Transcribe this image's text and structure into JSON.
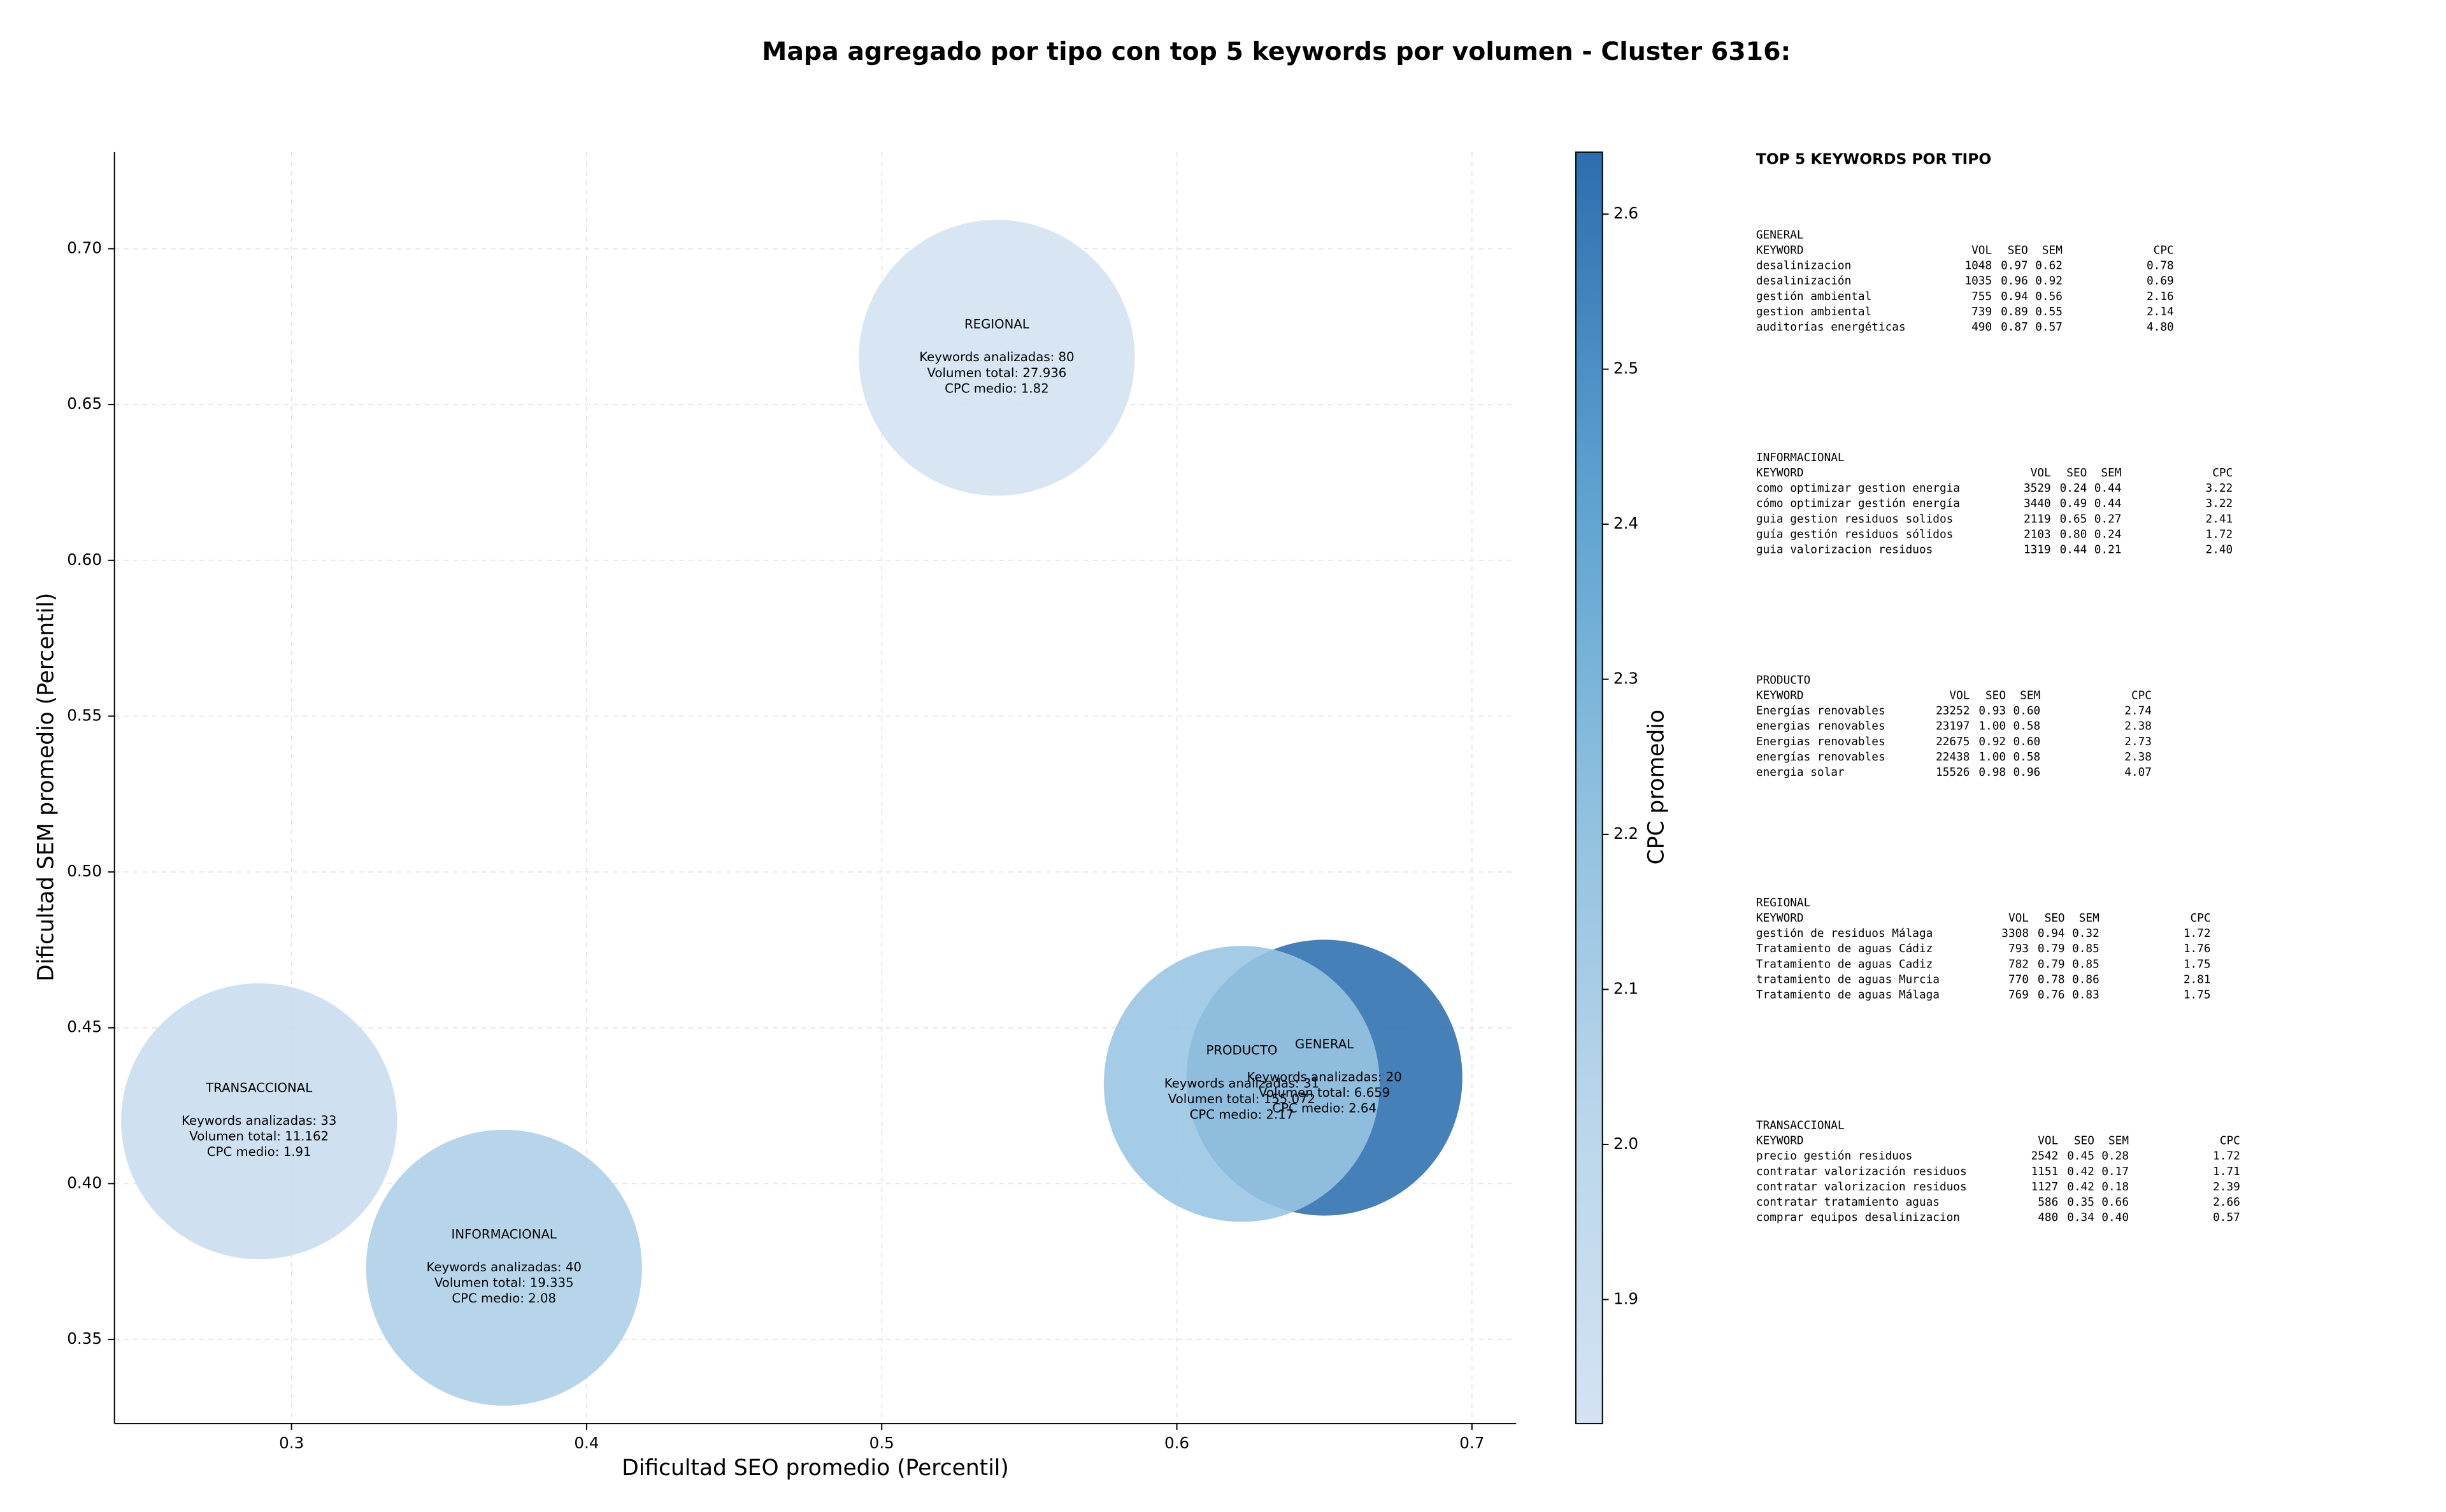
{
  "chart_data": {
    "type": "bubble",
    "title": "Mapa agregado por tipo con top 5 keywords por volumen - Cluster 6316:",
    "x_label": "Dificultad SEO promedio (Percentil)",
    "y_label": "Dificultad SEM promedio (Percentil)",
    "xlim": [
      0.24,
      0.715
    ],
    "ylim": [
      0.323,
      0.731
    ],
    "xticks": [
      0.3,
      0.4,
      0.5,
      0.6,
      0.7
    ],
    "yticks": [
      0.35,
      {
        "value": 0.4,
        "label": "0.40"
      },
      0.45,
      {
        "value": 0.5,
        "label": "0.50"
      },
      0.55,
      {
        "value": 0.6,
        "label": "0.60"
      },
      0.65,
      {
        "value": 0.7,
        "label": "0.70"
      }
    ],
    "grid": true,
    "colorbar": {
      "label": "CPC promedio",
      "clim": [
        1.82,
        2.64
      ],
      "ticks": [
        1.9,
        {
          "value": 2,
          "label": "2.0"
        },
        2.1,
        2.2,
        2.3,
        2.4,
        2.5,
        2.6
      ],
      "cmap": [
        "#d3e3f3",
        "#b9d5ea",
        "#8cbfde",
        "#5a9fcf",
        "#2c6eae"
      ]
    },
    "points": [
      {
        "name": "GENERAL",
        "x": 0.65,
        "y": 0.434,
        "cpc": 2.64,
        "labels": [
          "Keywords analizadas: 20",
          "Volumen total: 6.659",
          "CPC medio: 2.64"
        ]
      },
      {
        "name": "INFORMACIONAL",
        "x": 0.372,
        "y": 0.373,
        "cpc": 2.08,
        "labels": [
          "Keywords analizadas: 40",
          "Volumen total: 19.335",
          "CPC medio: 2.08"
        ]
      },
      {
        "name": "PRODUCTO",
        "x": 0.622,
        "y": 0.432,
        "cpc": 2.17,
        "labels": [
          "Keywords analizadas: 31",
          "Volumen total: 155.072",
          "CPC medio: 2.17"
        ]
      },
      {
        "name": "REGIONAL",
        "x": 0.539,
        "y": 0.665,
        "cpc": 1.82,
        "labels": [
          "Keywords analizadas: 80",
          "Volumen total: 27.936",
          "CPC medio: 1.82"
        ]
      },
      {
        "name": "TRANSACCIONAL",
        "x": 0.289,
        "y": 0.42,
        "cpc": 1.91,
        "labels": [
          "Keywords analizadas: 33",
          "Volumen total: 11.162",
          "CPC medio: 1.91"
        ]
      }
    ],
    "panel_title": "TOP 5 KEYWORDS POR TIPO",
    "tables": [
      {
        "title": "GENERAL",
        "header": [
          "KEYWORD",
          "VOL",
          "SEO",
          "SEM",
          "CPC"
        ],
        "rows": [
          [
            "desalinizacion",
            "1048",
            "0.97",
            "0.62",
            "0.78"
          ],
          [
            "desalinización",
            "1035",
            "0.96",
            "0.92",
            "0.69"
          ],
          [
            "gestión ambiental",
            "755",
            "0.94",
            "0.56",
            "2.16"
          ],
          [
            "gestion ambiental",
            "739",
            "0.89",
            "0.55",
            "2.14"
          ],
          [
            "auditorías energéticas",
            "490",
            "0.87",
            "0.57",
            "4.80"
          ]
        ]
      },
      {
        "title": "INFORMACIONAL",
        "header": [
          "KEYWORD",
          "VOL",
          "SEO",
          "SEM",
          "CPC"
        ],
        "rows": [
          [
            "como optimizar gestion energia",
            "3529",
            "0.24",
            "0.44",
            "3.22"
          ],
          [
            "cómo optimizar gestión energía",
            "3440",
            "0.49",
            "0.44",
            "3.22"
          ],
          [
            "guia gestion residuos solidos",
            "2119",
            "0.65",
            "0.27",
            "2.41"
          ],
          [
            "guía gestión residuos sólidos",
            "2103",
            "0.80",
            "0.24",
            "1.72"
          ],
          [
            "guia valorizacion residuos",
            "1319",
            "0.44",
            "0.21",
            "2.40"
          ]
        ]
      },
      {
        "title": "PRODUCTO",
        "header": [
          "KEYWORD",
          "VOL",
          "SEO",
          "SEM",
          "CPC"
        ],
        "rows": [
          [
            "Energías renovables",
            "23252",
            "0.93",
            "0.60",
            "2.74"
          ],
          [
            "energias renovables",
            "23197",
            "1.00",
            "0.58",
            "2.38"
          ],
          [
            "Energias renovables",
            "22675",
            "0.92",
            "0.60",
            "2.73"
          ],
          [
            "energías renovables",
            "22438",
            "1.00",
            "0.58",
            "2.38"
          ],
          [
            "energia solar",
            "15526",
            "0.98",
            "0.96",
            "4.07"
          ]
        ]
      },
      {
        "title": "REGIONAL",
        "header": [
          "KEYWORD",
          "VOL",
          "SEO",
          "SEM",
          "CPC"
        ],
        "rows": [
          [
            "gestión de residuos Málaga",
            "3308",
            "0.94",
            "0.32",
            "1.72"
          ],
          [
            "Tratamiento de aguas Cádiz",
            "793",
            "0.79",
            "0.85",
            "1.76"
          ],
          [
            "Tratamiento de aguas Cadiz",
            "782",
            "0.79",
            "0.85",
            "1.75"
          ],
          [
            "tratamiento de aguas Murcia",
            "770",
            "0.78",
            "0.86",
            "2.81"
          ],
          [
            "Tratamiento de aguas Málaga",
            "769",
            "0.76",
            "0.83",
            "1.75"
          ]
        ]
      },
      {
        "title": "TRANSACCIONAL",
        "header": [
          "KEYWORD",
          "VOL",
          "SEO",
          "SEM",
          "CPC"
        ],
        "rows": [
          [
            "precio gestión residuos",
            "2542",
            "0.45",
            "0.28",
            "1.72"
          ],
          [
            "contratar valorización residuos",
            "1151",
            "0.42",
            "0.17",
            "1.71"
          ],
          [
            "contratar valorizacion residuos",
            "1127",
            "0.42",
            "0.18",
            "2.39"
          ],
          [
            "contratar tratamiento aguas",
            "586",
            "0.35",
            "0.66",
            "2.66"
          ],
          [
            "comprar equipos desalinizacion",
            "480",
            "0.34",
            "0.40",
            "0.57"
          ]
        ]
      }
    ]
  }
}
